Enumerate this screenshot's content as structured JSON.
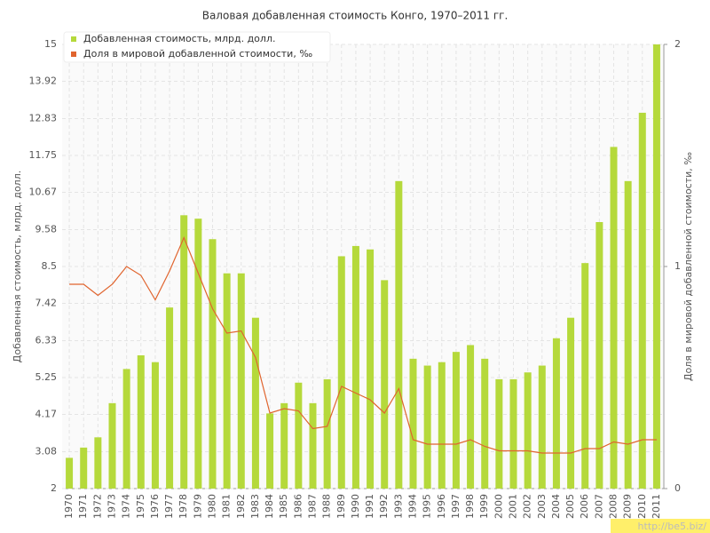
{
  "chart_data": {
    "type": "bar-line",
    "title": "Валовая добавленная стоимость Конго, 1970–2011 гг.",
    "ylabel": "Добавленная стоимость, млрд. долл.",
    "y2label": "Доля в мировой добавленной стоимости, ‰",
    "categories": [
      "1970",
      "1971",
      "1972",
      "1973",
      "1974",
      "1975",
      "1976",
      "1977",
      "1978",
      "1979",
      "1980",
      "1981",
      "1982",
      "1983",
      "1984",
      "1985",
      "1986",
      "1987",
      "1988",
      "1989",
      "1990",
      "1991",
      "1992",
      "1993",
      "1994",
      "1995",
      "1996",
      "1997",
      "1998",
      "1999",
      "2000",
      "2001",
      "2002",
      "2003",
      "2004",
      "2005",
      "2006",
      "2007",
      "2008",
      "2009",
      "2010",
      "2011"
    ],
    "series": [
      {
        "name": "Добавленная стоимость, млрд. долл.",
        "kind": "bar",
        "color": "#b5d93b",
        "values": [
          2.9,
          3.2,
          3.5,
          4.5,
          5.5,
          5.9,
          5.7,
          7.3,
          10.0,
          9.9,
          9.3,
          8.3,
          8.3,
          7.0,
          4.2,
          4.5,
          5.1,
          4.5,
          5.2,
          8.8,
          9.1,
          9.0,
          8.1,
          11.0,
          5.8,
          5.6,
          5.7,
          6.0,
          6.2,
          5.8,
          5.2,
          5.2,
          5.4,
          5.6,
          6.4,
          7.0,
          8.6,
          9.8,
          12.0,
          11.0,
          13.0,
          15.0
        ]
      },
      {
        "name": "Доля в мировой добавленной стоимости, ‰",
        "kind": "line",
        "axis": "y2",
        "color": "#e0642e",
        "values": [
          0.92,
          0.92,
          0.87,
          0.92,
          1.0,
          0.96,
          0.85,
          0.98,
          1.13,
          0.97,
          0.81,
          0.7,
          0.71,
          0.59,
          0.34,
          0.36,
          0.35,
          0.27,
          0.28,
          0.46,
          0.43,
          0.4,
          0.34,
          0.45,
          0.22,
          0.2,
          0.2,
          0.2,
          0.22,
          0.19,
          0.17,
          0.17,
          0.17,
          0.16,
          0.16,
          0.16,
          0.18,
          0.18,
          0.21,
          0.2,
          0.22,
          0.22
        ]
      }
    ],
    "ylim": [
      2,
      15
    ],
    "yticks": [
      2,
      3.08,
      4.17,
      5.25,
      6.33,
      7.42,
      8.5,
      9.58,
      10.67,
      11.75,
      12.83,
      13.92,
      15
    ],
    "y2lim": [
      0,
      2
    ],
    "y2ticks": [
      0,
      1,
      2
    ],
    "grid": true,
    "legend": "top-left",
    "watermark": "http://be5.biz/"
  }
}
